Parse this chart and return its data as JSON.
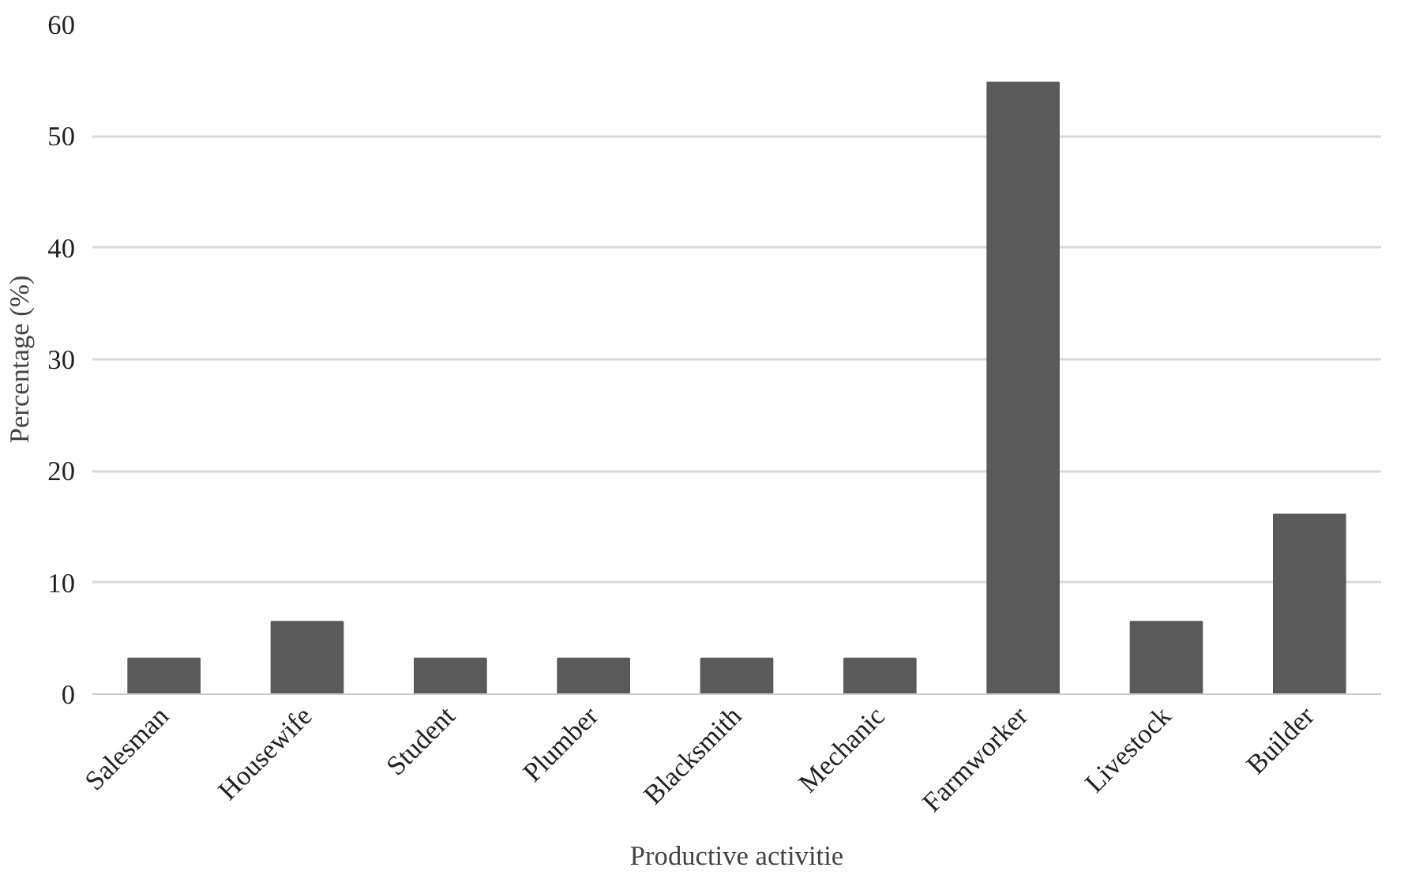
{
  "chart_data": {
    "type": "bar",
    "xlabel": "Productive activitie",
    "ylabel": "Percentage (%)",
    "categories": [
      "Salesman",
      "Housewife",
      "Student",
      "Plumber",
      "Blacksmith",
      "Mechanic",
      "Farmworker",
      "Livestock",
      "Builder"
    ],
    "values": [
      3.2,
      6.5,
      3.2,
      3.2,
      3.2,
      3.2,
      54.8,
      6.5,
      16.1
    ],
    "color": "#5a5a5a",
    "ylim": [
      0,
      60
    ],
    "yticks": [
      0,
      10,
      20,
      30,
      40,
      50,
      60
    ],
    "grid": "y"
  }
}
